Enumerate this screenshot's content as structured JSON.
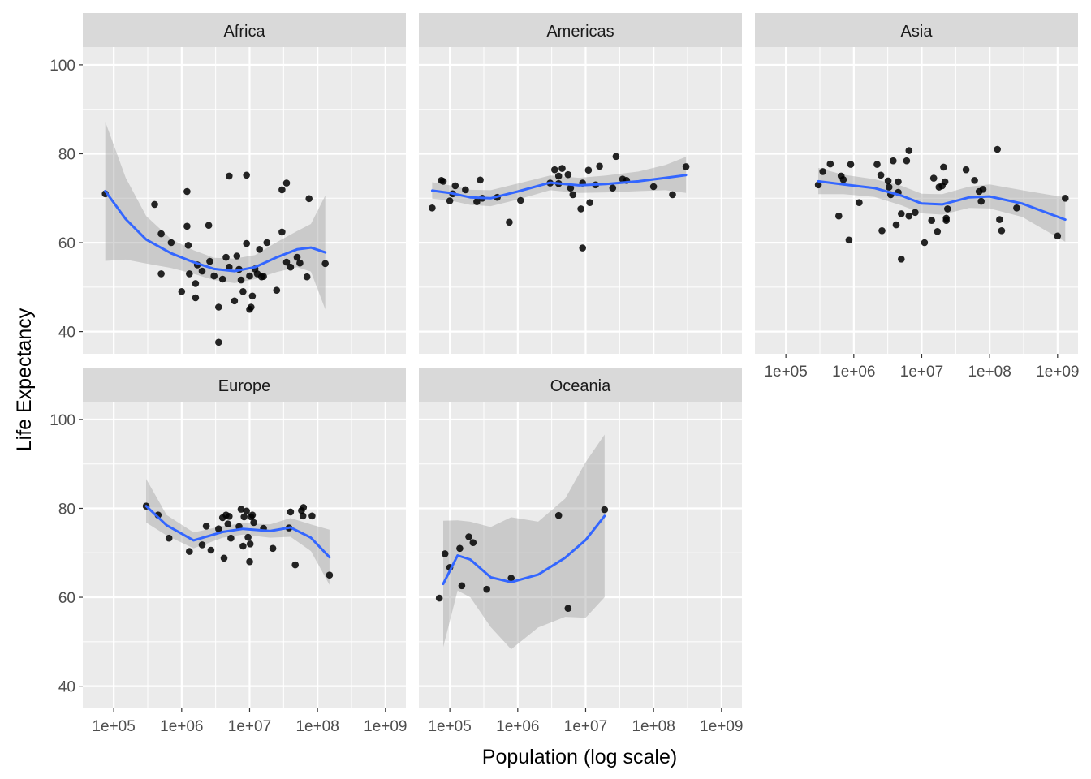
{
  "chart_data": {
    "type": "scatter",
    "facet_by": "continent",
    "xlabel": "Population (log scale)",
    "ylabel": "Life Expectancy",
    "x_scale": "log10",
    "x_ticks": [
      100000,
      1000000,
      10000000,
      100000000,
      1000000000
    ],
    "x_tick_labels": [
      "1e+05",
      "1e+06",
      "1e+07",
      "1e+08",
      "1e+09"
    ],
    "y_ticks": [
      40,
      60,
      80,
      100
    ],
    "y_tick_labels": [
      "40",
      "60",
      "80",
      "100"
    ],
    "xlim": [
      35000,
      2000000000
    ],
    "ylim": [
      35,
      104
    ],
    "grid": true,
    "smooth": "loess with 95% confidence band",
    "colors": {
      "panel_bg": "#EBEBEB",
      "strip_bg": "#D9D9D9",
      "grid": "#FFFFFF",
      "point": "#000000",
      "smooth_line": "#3366FF",
      "band": "#999999"
    },
    "facets": [
      {
        "label": "Africa",
        "points": [
          [
            75000,
            71
          ],
          [
            400000,
            68.6
          ],
          [
            500000,
            62
          ],
          [
            500000,
            53
          ],
          [
            700000,
            60
          ],
          [
            1000000,
            49
          ],
          [
            1200000,
            71.5
          ],
          [
            1200000,
            63.7
          ],
          [
            1250000,
            59.4
          ],
          [
            1300000,
            53
          ],
          [
            1600000,
            50.8
          ],
          [
            1600000,
            47.6
          ],
          [
            1700000,
            55
          ],
          [
            2000000,
            53.6
          ],
          [
            2500000,
            63.9
          ],
          [
            2600000,
            55.8
          ],
          [
            3000000,
            52.5
          ],
          [
            3500000,
            45.5
          ],
          [
            3500000,
            37.6
          ],
          [
            4000000,
            51.8
          ],
          [
            4500000,
            56.7
          ],
          [
            5000000,
            75
          ],
          [
            5000000,
            54.5
          ],
          [
            6000000,
            46.9
          ],
          [
            6500000,
            57
          ],
          [
            7000000,
            54
          ],
          [
            7500000,
            51.6
          ],
          [
            8000000,
            49
          ],
          [
            9000000,
            75.2
          ],
          [
            9000000,
            59.8
          ],
          [
            10000000,
            52.5
          ],
          [
            10000000,
            45
          ],
          [
            10500000,
            45.5
          ],
          [
            11000000,
            48
          ],
          [
            12000000,
            54.1
          ],
          [
            13000000,
            53
          ],
          [
            14000000,
            58.5
          ],
          [
            15000000,
            52.3
          ],
          [
            16000000,
            52.4
          ],
          [
            18000000,
            60
          ],
          [
            25000000,
            49.3
          ],
          [
            30000000,
            62.4
          ],
          [
            30000000,
            71.9
          ],
          [
            35000000,
            73.4
          ],
          [
            35000000,
            55.6
          ],
          [
            40000000,
            54.5
          ],
          [
            50000000,
            56.7
          ],
          [
            55000000,
            55.4
          ],
          [
            70000000,
            52.3
          ],
          [
            75000000,
            69.9
          ],
          [
            130000000,
            55.3
          ]
        ],
        "smooth": [
          [
            75000,
            71.6,
            55.9,
            87.2
          ],
          [
            150000,
            65.3,
            56.2,
            74.6
          ],
          [
            300000,
            60.7,
            55.3,
            66.0
          ],
          [
            700000,
            57.6,
            54.3,
            60.8
          ],
          [
            1500000,
            55.6,
            53.0,
            58.3
          ],
          [
            3000000,
            54.1,
            51.6,
            56.6
          ],
          [
            6000000,
            53.6,
            50.9,
            56.4
          ],
          [
            12000000,
            54.5,
            51.8,
            57.2
          ],
          [
            25000000,
            56.7,
            53.4,
            60.1
          ],
          [
            50000000,
            58.5,
            54.5,
            62.6
          ],
          [
            80000000,
            58.9,
            53.5,
            64.2
          ],
          [
            130000000,
            57.8,
            45.0,
            70.6
          ]
        ]
      },
      {
        "label": "Americas",
        "points": [
          [
            55000,
            67.8
          ],
          [
            75000,
            74
          ],
          [
            80000,
            73.8
          ],
          [
            100000,
            69.4
          ],
          [
            110000,
            71
          ],
          [
            120000,
            72.8
          ],
          [
            170000,
            71.9
          ],
          [
            250000,
            69.2
          ],
          [
            280000,
            74.1
          ],
          [
            300000,
            70
          ],
          [
            500000,
            70.2
          ],
          [
            750000,
            64.6
          ],
          [
            1100000,
            69.5
          ],
          [
            3000000,
            73.4
          ],
          [
            3500000,
            76.4
          ],
          [
            4000000,
            73.3
          ],
          [
            4000000,
            75
          ],
          [
            4500000,
            76.7
          ],
          [
            5500000,
            75.3
          ],
          [
            6000000,
            72.3
          ],
          [
            6500000,
            70.8
          ],
          [
            8500000,
            67.6
          ],
          [
            9000000,
            58.8
          ],
          [
            9000000,
            73.4
          ],
          [
            11000000,
            76.3
          ],
          [
            11500000,
            69
          ],
          [
            14000000,
            73
          ],
          [
            16000000,
            77.2
          ],
          [
            25000000,
            72.3
          ],
          [
            28000000,
            79.4
          ],
          [
            35000000,
            74.3
          ],
          [
            40000000,
            74
          ],
          [
            100000000,
            72.6
          ],
          [
            190000000,
            70.8
          ],
          [
            300000000,
            77.1
          ]
        ],
        "smooth": [
          [
            55000,
            71.7,
            69.9,
            73.6
          ],
          [
            100000,
            71.2,
            69.5,
            72.9
          ],
          [
            200000,
            70.2,
            68.5,
            71.9
          ],
          [
            400000,
            70.0,
            68.2,
            71.8
          ],
          [
            1000000,
            71.5,
            69.7,
            73.3
          ],
          [
            3000000,
            73.5,
            71.8,
            75.1
          ],
          [
            8000000,
            72.9,
            71.2,
            74.6
          ],
          [
            20000000,
            73.2,
            71.3,
            75.1
          ],
          [
            60000000,
            73.8,
            71.6,
            76.0
          ],
          [
            150000000,
            74.6,
            71.8,
            77.5
          ],
          [
            300000000,
            75.2,
            71.2,
            79.3
          ]
        ]
      },
      {
        "label": "Asia",
        "points": [
          [
            300000,
            73
          ],
          [
            350000,
            76
          ],
          [
            450000,
            77.7
          ],
          [
            600000,
            66
          ],
          [
            650000,
            75
          ],
          [
            700000,
            74.2
          ],
          [
            850000,
            60.6
          ],
          [
            900000,
            77.6
          ],
          [
            1200000,
            69
          ],
          [
            2200000,
            77.6
          ],
          [
            2500000,
            75.2
          ],
          [
            2600000,
            62.7
          ],
          [
            3200000,
            73.9
          ],
          [
            3300000,
            72.5
          ],
          [
            3500000,
            70.8
          ],
          [
            3800000,
            78.4
          ],
          [
            4200000,
            64
          ],
          [
            4500000,
            73.7
          ],
          [
            4500000,
            71.3
          ],
          [
            5000000,
            66.5
          ],
          [
            5000000,
            56.3
          ],
          [
            6000000,
            78.4
          ],
          [
            6500000,
            66
          ],
          [
            6500000,
            80.7
          ],
          [
            8000000,
            66.8
          ],
          [
            11000000,
            60
          ],
          [
            14000000,
            65
          ],
          [
            15000000,
            74.5
          ],
          [
            17000000,
            62.5
          ],
          [
            18000000,
            72.5
          ],
          [
            20000000,
            72.8
          ],
          [
            21000000,
            77
          ],
          [
            22000000,
            73.7
          ],
          [
            23000000,
            65
          ],
          [
            23000000,
            65.5
          ],
          [
            24000000,
            67.6
          ],
          [
            45000000,
            76.4
          ],
          [
            60000000,
            74
          ],
          [
            70000000,
            71.5
          ],
          [
            75000000,
            69.3
          ],
          [
            80000000,
            72
          ],
          [
            130000000,
            81
          ],
          [
            140000000,
            65.2
          ],
          [
            150000000,
            62.7
          ],
          [
            250000000,
            67.8
          ],
          [
            1000000000,
            61.5
          ],
          [
            1300000000,
            70
          ]
        ],
        "smooth": [
          [
            300000,
            73.8,
            70.9,
            76.8
          ],
          [
            700000,
            73.1,
            70.9,
            75.3
          ],
          [
            2000000,
            72.3,
            70.3,
            74.3
          ],
          [
            5000000,
            70.6,
            68.4,
            72.8
          ],
          [
            10000000,
            68.8,
            66.6,
            71.0
          ],
          [
            20000000,
            68.6,
            66.3,
            70.9
          ],
          [
            50000000,
            70.2,
            67.8,
            72.6
          ],
          [
            100000000,
            70.4,
            67.7,
            73.1
          ],
          [
            300000000,
            68.8,
            65.8,
            71.8
          ],
          [
            1300000000,
            65.2,
            60.2,
            70.2
          ]
        ]
      },
      {
        "label": "Europe",
        "points": [
          [
            300000,
            80.5
          ],
          [
            450000,
            78.5
          ],
          [
            650000,
            73.3
          ],
          [
            1300000,
            70.3
          ],
          [
            2000000,
            71.8
          ],
          [
            2300000,
            76
          ],
          [
            2700000,
            70.6
          ],
          [
            3500000,
            75.4
          ],
          [
            4000000,
            77.9
          ],
          [
            4200000,
            68.8
          ],
          [
            4500000,
            78.5
          ],
          [
            4800000,
            76.5
          ],
          [
            5000000,
            78.2
          ],
          [
            5300000,
            73.3
          ],
          [
            7000000,
            75.9
          ],
          [
            7500000,
            79.8
          ],
          [
            8000000,
            71.5
          ],
          [
            8300000,
            78.1
          ],
          [
            9000000,
            79.4
          ],
          [
            9500000,
            73.5
          ],
          [
            10000000,
            68
          ],
          [
            10200000,
            72
          ],
          [
            10500000,
            78.1
          ],
          [
            11000000,
            78.5
          ],
          [
            11500000,
            76.8
          ],
          [
            16000000,
            75.5
          ],
          [
            22000000,
            71
          ],
          [
            38000000,
            75.6
          ],
          [
            40000000,
            79.2
          ],
          [
            47000000,
            67.3
          ],
          [
            58000000,
            79.5
          ],
          [
            61000000,
            78.3
          ],
          [
            62000000,
            80.2
          ],
          [
            83000000,
            78.3
          ],
          [
            150000000,
            65
          ]
        ],
        "smooth": [
          [
            300000,
            80.5,
            76.8,
            86.6
          ],
          [
            600000,
            76.2,
            73.9,
            78.5
          ],
          [
            1500000,
            72.8,
            71.0,
            74.6
          ],
          [
            4000000,
            74.7,
            73.4,
            76.0
          ],
          [
            8000000,
            75.4,
            74.1,
            76.7
          ],
          [
            20000000,
            74.9,
            73.4,
            76.4
          ],
          [
            40000000,
            75.7,
            73.6,
            77.8
          ],
          [
            80000000,
            73.4,
            70.4,
            76.4
          ],
          [
            150000000,
            69.0,
            62.8,
            75.2
          ]
        ]
      },
      {
        "label": "Oceania",
        "points": [
          [
            70000,
            59.8
          ],
          [
            85000,
            69.8
          ],
          [
            100000,
            66.7
          ],
          [
            140000,
            71
          ],
          [
            150000,
            62.6
          ],
          [
            190000,
            73.6
          ],
          [
            220000,
            72.3
          ],
          [
            350000,
            61.8
          ],
          [
            800000,
            64.3
          ],
          [
            4000000,
            78.4
          ],
          [
            5500000,
            57.5
          ],
          [
            19000000,
            79.7
          ]
        ],
        "smooth": [
          [
            80000,
            63,
            48.8,
            77.2
          ],
          [
            130000,
            69.4,
            61.5,
            77.3
          ],
          [
            200000,
            68.5,
            60.0,
            77.0
          ],
          [
            400000,
            64.5,
            53.3,
            75.8
          ],
          [
            800000,
            63.4,
            48.3,
            78.0
          ],
          [
            2000000,
            65.1,
            53.2,
            77.0
          ],
          [
            5000000,
            68.9,
            55.6,
            82.2
          ],
          [
            10000000,
            72.9,
            55.4,
            90.4
          ],
          [
            19000000,
            78.3,
            60.0,
            96.6
          ]
        ]
      }
    ]
  }
}
